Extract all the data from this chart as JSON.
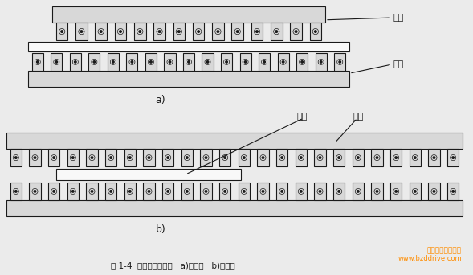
{
  "caption": "图 1-4  双边型直线电机   a)短初级   b)短次级",
  "watermark_line1": "深圳博智达机器人",
  "watermark_line2": "www.bzddrive.com",
  "watermark_color": "#FF8C00",
  "background_color": "#ebebeb",
  "label_a": "a)",
  "label_b": "b)",
  "label_chuji": "初级",
  "label_ciji": "次级",
  "line_color": "#1a1a1a",
  "face_color": "#d8d8d8",
  "white_color": "#f8f8f8"
}
